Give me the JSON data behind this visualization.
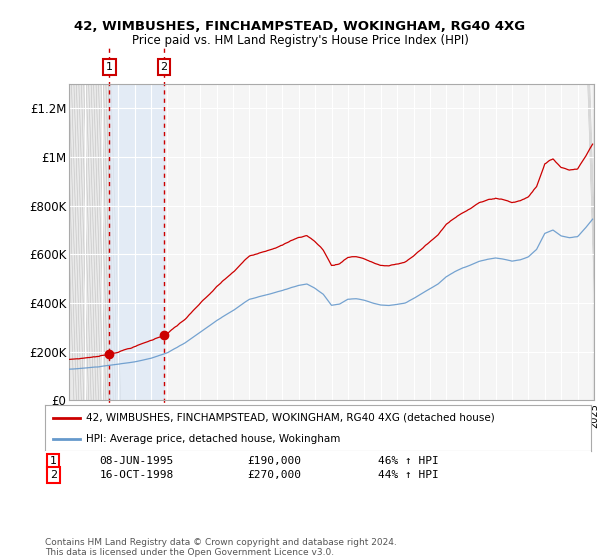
{
  "title1": "42, WIMBUSHES, FINCHAMPSTEAD, WOKINGHAM, RG40 4XG",
  "title2": "Price paid vs. HM Land Registry's House Price Index (HPI)",
  "ylim": [
    0,
    1300000
  ],
  "yticks": [
    0,
    200000,
    400000,
    600000,
    800000,
    1000000,
    1200000
  ],
  "ytick_labels": [
    "£0",
    "£200K",
    "£400K",
    "£600K",
    "£800K",
    "£1M",
    "£1.2M"
  ],
  "background_color": "#ffffff",
  "plot_bg_color": "#f5f5f5",
  "legend_label_red": "42, WIMBUSHES, FINCHAMPSTEAD, WOKINGHAM, RG40 4XG (detached house)",
  "legend_label_blue": "HPI: Average price, detached house, Wokingham",
  "sale1_label": "08-JUN-1995",
  "sale1_price_str": "£190,000",
  "sale1_pct": "46%",
  "sale2_label": "16-OCT-1998",
  "sale2_price_str": "£270,000",
  "sale2_pct": "44%",
  "footer": "Contains HM Land Registry data © Crown copyright and database right 2024.\nThis data is licensed under the Open Government Licence v3.0.",
  "red_color": "#cc0000",
  "blue_color": "#6699cc",
  "sale1_price": 190000,
  "sale2_price": 270000,
  "sale1_year": 1995.458,
  "sale2_year": 1998.792
}
